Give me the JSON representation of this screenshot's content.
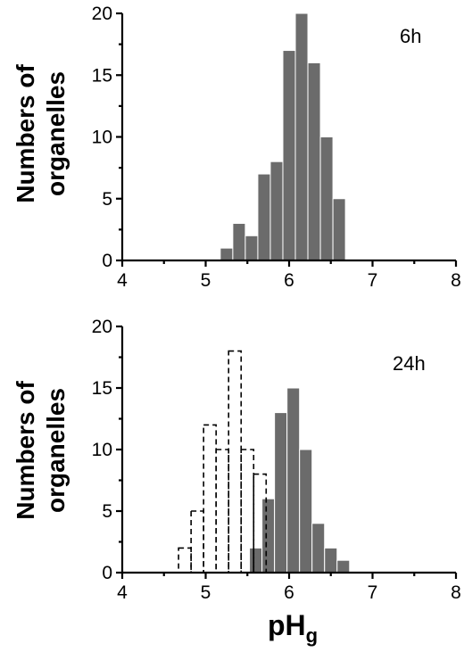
{
  "chart_data": [
    {
      "type": "bar",
      "panel_label": "6h",
      "ylabel_line1": "Numbers of",
      "ylabel_line2": "organelles",
      "xlim": [
        4,
        8
      ],
      "ylim": [
        0,
        20
      ],
      "x_ticks": [
        "4",
        "5",
        "6",
        "7",
        "8"
      ],
      "y_ticks": [
        "0",
        "5",
        "10",
        "15",
        "20"
      ],
      "bin_width": 0.15,
      "series": [
        {
          "style": "solid",
          "color": "#6b6b6b",
          "x": [
            5.25,
            5.4,
            5.55,
            5.7,
            5.85,
            6.0,
            6.15,
            6.3,
            6.45,
            6.6
          ],
          "values": [
            1,
            3,
            2,
            7,
            8,
            17,
            20,
            16,
            10,
            5
          ]
        }
      ]
    },
    {
      "type": "bar",
      "panel_label": "24h",
      "ylabel_line1": "Numbers of",
      "ylabel_line2": "organelles",
      "xlim": [
        4,
        8
      ],
      "ylim": [
        0,
        20
      ],
      "x_ticks": [
        "4",
        "5",
        "6",
        "7",
        "8"
      ],
      "y_ticks": [
        "0",
        "5",
        "10",
        "15",
        "20"
      ],
      "xlabel_main": "pH",
      "xlabel_sub": "g",
      "bin_width": 0.15,
      "series": [
        {
          "style": "dashed",
          "color": "#000000",
          "x": [
            4.75,
            4.9,
            5.05,
            5.2,
            5.35,
            5.5,
            5.65
          ],
          "values": [
            2,
            5,
            12,
            10,
            18,
            10,
            8
          ]
        },
        {
          "style": "solid",
          "color": "#6b6b6b",
          "x": [
            5.6,
            5.75,
            5.9,
            6.05,
            6.2,
            6.35,
            6.5,
            6.65,
            6.8
          ],
          "values": [
            2,
            6,
            13,
            15,
            10,
            4,
            2,
            1,
            0
          ]
        }
      ]
    }
  ]
}
